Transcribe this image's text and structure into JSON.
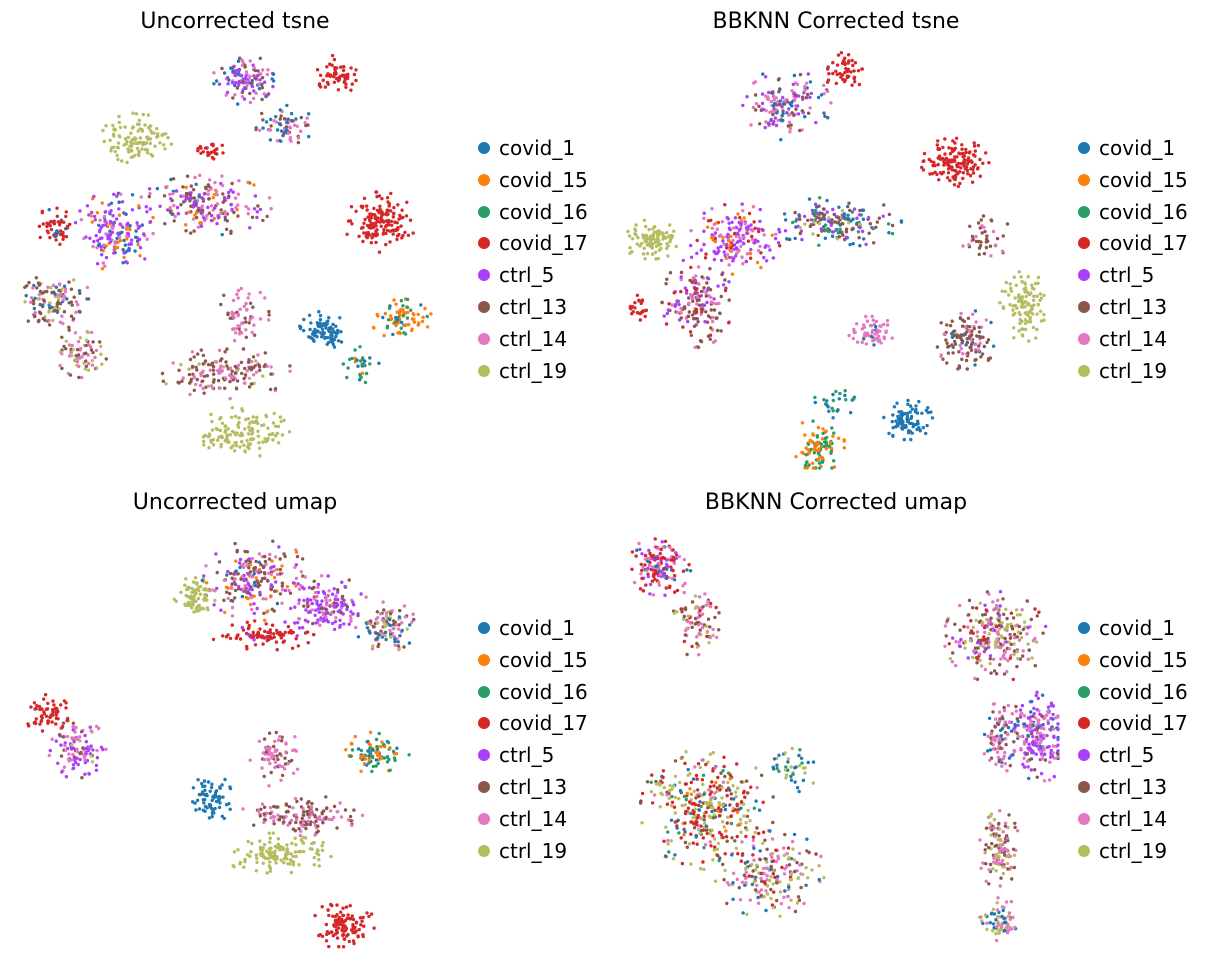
{
  "colors": {
    "covid_1": "#1f77b4",
    "covid_15": "#ff7f0e",
    "covid_16": "#279e68",
    "covid_17": "#d62728",
    "ctrl_5": "#aa40fc",
    "ctrl_13": "#8c564b",
    "ctrl_14": "#e377c2",
    "ctrl_19": "#b5bd61"
  },
  "chart_data": [
    {
      "type": "scatter",
      "title": "Uncorrected tsne",
      "legend": [
        "covid_1",
        "covid_15",
        "covid_16",
        "covid_17",
        "ctrl_5",
        "ctrl_13",
        "ctrl_14",
        "ctrl_19"
      ],
      "legend_position": "right",
      "grid": false,
      "axes_visible": false,
      "clusters": [
        {
          "cx": 0.52,
          "cy": 0.07,
          "rx": 0.06,
          "ry": 0.05,
          "n": 120,
          "mix": {
            "ctrl_5": 0.35,
            "ctrl_13": 0.25,
            "covid_1": 0.15,
            "ctrl_14": 0.25
          }
        },
        {
          "cx": 0.62,
          "cy": 0.18,
          "rx": 0.06,
          "ry": 0.04,
          "n": 70,
          "mix": {
            "ctrl_13": 0.4,
            "ctrl_14": 0.3,
            "covid_1": 0.3
          }
        },
        {
          "cx": 0.74,
          "cy": 0.06,
          "rx": 0.04,
          "ry": 0.04,
          "n": 60,
          "mix": {
            "covid_17": 1
          }
        },
        {
          "cx": 0.27,
          "cy": 0.21,
          "rx": 0.07,
          "ry": 0.05,
          "n": 110,
          "mix": {
            "ctrl_19": 1
          }
        },
        {
          "cx": 0.44,
          "cy": 0.24,
          "rx": 0.03,
          "ry": 0.02,
          "n": 25,
          "mix": {
            "covid_17": 1
          }
        },
        {
          "cx": 0.43,
          "cy": 0.37,
          "rx": 0.13,
          "ry": 0.06,
          "n": 200,
          "mix": {
            "ctrl_13": 0.35,
            "ctrl_5": 0.25,
            "ctrl_14": 0.25,
            "covid_15": 0.1,
            "covid_1": 0.05
          }
        },
        {
          "cx": 0.22,
          "cy": 0.43,
          "rx": 0.08,
          "ry": 0.08,
          "n": 170,
          "mix": {
            "ctrl_5": 0.5,
            "ctrl_14": 0.2,
            "covid_1": 0.15,
            "covid_15": 0.15
          }
        },
        {
          "cx": 0.08,
          "cy": 0.42,
          "rx": 0.04,
          "ry": 0.04,
          "n": 50,
          "mix": {
            "covid_17": 0.8,
            "covid_1": 0.2
          }
        },
        {
          "cx": 0.08,
          "cy": 0.6,
          "rx": 0.07,
          "ry": 0.06,
          "n": 120,
          "mix": {
            "ctrl_13": 0.45,
            "ctrl_14": 0.25,
            "ctrl_19": 0.15,
            "covid_1": 0.15
          }
        },
        {
          "cx": 0.14,
          "cy": 0.72,
          "rx": 0.05,
          "ry": 0.05,
          "n": 70,
          "mix": {
            "ctrl_14": 0.4,
            "ctrl_19": 0.3,
            "ctrl_13": 0.3
          }
        },
        {
          "cx": 0.84,
          "cy": 0.41,
          "rx": 0.07,
          "ry": 0.06,
          "n": 150,
          "mix": {
            "covid_17": 1
          }
        },
        {
          "cx": 0.71,
          "cy": 0.67,
          "rx": 0.05,
          "ry": 0.04,
          "n": 90,
          "mix": {
            "covid_1": 1
          }
        },
        {
          "cx": 0.89,
          "cy": 0.64,
          "rx": 0.06,
          "ry": 0.04,
          "n": 80,
          "mix": {
            "covid_15": 0.6,
            "covid_16": 0.3,
            "covid_1": 0.1
          }
        },
        {
          "cx": 0.79,
          "cy": 0.75,
          "rx": 0.04,
          "ry": 0.04,
          "n": 30,
          "mix": {
            "covid_16": 0.6,
            "covid_1": 0.2,
            "covid_15": 0.2
          }
        },
        {
          "cx": 0.52,
          "cy": 0.63,
          "rx": 0.05,
          "ry": 0.06,
          "n": 60,
          "mix": {
            "ctrl_14": 0.7,
            "ctrl_13": 0.3
          }
        },
        {
          "cx": 0.48,
          "cy": 0.77,
          "rx": 0.13,
          "ry": 0.05,
          "n": 160,
          "mix": {
            "ctrl_13": 0.5,
            "ctrl_14": 0.4,
            "ctrl_19": 0.1
          }
        },
        {
          "cx": 0.52,
          "cy": 0.91,
          "rx": 0.09,
          "ry": 0.05,
          "n": 130,
          "mix": {
            "ctrl_19": 1
          }
        }
      ]
    },
    {
      "type": "scatter",
      "title": "BBKNN Corrected tsne",
      "legend": [
        "covid_1",
        "covid_15",
        "covid_16",
        "covid_17",
        "ctrl_5",
        "ctrl_13",
        "ctrl_14",
        "ctrl_19"
      ],
      "legend_position": "right",
      "grid": false,
      "axes_visible": false,
      "clusters": [
        {
          "cx": 0.38,
          "cy": 0.13,
          "rx": 0.09,
          "ry": 0.07,
          "n": 150,
          "mix": {
            "ctrl_5": 0.25,
            "ctrl_14": 0.3,
            "covid_1": 0.2,
            "ctrl_13": 0.25
          }
        },
        {
          "cx": 0.52,
          "cy": 0.05,
          "rx": 0.04,
          "ry": 0.04,
          "n": 50,
          "mix": {
            "covid_17": 1
          }
        },
        {
          "cx": 0.78,
          "cy": 0.27,
          "rx": 0.07,
          "ry": 0.05,
          "n": 140,
          "mix": {
            "covid_17": 1
          }
        },
        {
          "cx": 0.06,
          "cy": 0.45,
          "rx": 0.06,
          "ry": 0.04,
          "n": 100,
          "mix": {
            "ctrl_19": 1
          }
        },
        {
          "cx": 0.26,
          "cy": 0.45,
          "rx": 0.09,
          "ry": 0.07,
          "n": 180,
          "mix": {
            "ctrl_5": 0.5,
            "ctrl_14": 0.2,
            "covid_17": 0.15,
            "covid_15": 0.15
          }
        },
        {
          "cx": 0.5,
          "cy": 0.41,
          "rx": 0.13,
          "ry": 0.05,
          "n": 180,
          "mix": {
            "ctrl_13": 0.3,
            "ctrl_5": 0.25,
            "covid_1": 0.2,
            "ctrl_19": 0.1,
            "covid_16": 0.15
          }
        },
        {
          "cx": 0.17,
          "cy": 0.6,
          "rx": 0.07,
          "ry": 0.09,
          "n": 170,
          "mix": {
            "ctrl_13": 0.5,
            "ctrl_14": 0.2,
            "ctrl_5": 0.15,
            "covid_17": 0.15
          }
        },
        {
          "cx": 0.03,
          "cy": 0.62,
          "rx": 0.03,
          "ry": 0.03,
          "n": 25,
          "mix": {
            "covid_17": 1
          }
        },
        {
          "cx": 0.86,
          "cy": 0.45,
          "rx": 0.05,
          "ry": 0.05,
          "n": 40,
          "mix": {
            "ctrl_13": 0.6,
            "ctrl_14": 0.4
          }
        },
        {
          "cx": 0.95,
          "cy": 0.61,
          "rx": 0.05,
          "ry": 0.07,
          "n": 110,
          "mix": {
            "ctrl_19": 1
          }
        },
        {
          "cx": 0.81,
          "cy": 0.69,
          "rx": 0.06,
          "ry": 0.06,
          "n": 120,
          "mix": {
            "ctrl_13": 0.6,
            "ctrl_14": 0.3,
            "covid_1": 0.1
          }
        },
        {
          "cx": 0.58,
          "cy": 0.67,
          "rx": 0.05,
          "ry": 0.03,
          "n": 60,
          "mix": {
            "ctrl_14": 0.9,
            "covid_1": 0.1
          }
        },
        {
          "cx": 0.5,
          "cy": 0.84,
          "rx": 0.05,
          "ry": 0.03,
          "n": 25,
          "mix": {
            "covid_1": 0.6,
            "covid_16": 0.4
          }
        },
        {
          "cx": 0.46,
          "cy": 0.94,
          "rx": 0.05,
          "ry": 0.06,
          "n": 100,
          "mix": {
            "covid_15": 0.6,
            "covid_16": 0.4
          }
        },
        {
          "cx": 0.67,
          "cy": 0.88,
          "rx": 0.05,
          "ry": 0.04,
          "n": 90,
          "mix": {
            "covid_1": 1
          }
        }
      ]
    },
    {
      "type": "scatter",
      "title": "Uncorrected umap",
      "legend": [
        "covid_1",
        "covid_15",
        "covid_16",
        "covid_17",
        "ctrl_5",
        "ctrl_13",
        "ctrl_14",
        "ctrl_19"
      ],
      "legend_position": "right",
      "grid": false,
      "axes_visible": false,
      "clusters": [
        {
          "cx": 0.56,
          "cy": 0.11,
          "rx": 0.11,
          "ry": 0.08,
          "n": 220,
          "mix": {
            "ctrl_13": 0.35,
            "ctrl_14": 0.3,
            "ctrl_5": 0.2,
            "covid_15": 0.1,
            "covid_1": 0.05
          }
        },
        {
          "cx": 0.72,
          "cy": 0.17,
          "rx": 0.08,
          "ry": 0.06,
          "n": 150,
          "mix": {
            "ctrl_5": 0.55,
            "ctrl_14": 0.25,
            "ctrl_13": 0.2
          }
        },
        {
          "cx": 0.86,
          "cy": 0.22,
          "rx": 0.06,
          "ry": 0.05,
          "n": 110,
          "mix": {
            "ctrl_13": 0.3,
            "ctrl_14": 0.3,
            "covid_1": 0.2,
            "ctrl_19": 0.2
          }
        },
        {
          "cx": 0.41,
          "cy": 0.15,
          "rx": 0.04,
          "ry": 0.04,
          "n": 70,
          "mix": {
            "ctrl_19": 1
          }
        },
        {
          "cx": 0.58,
          "cy": 0.24,
          "rx": 0.11,
          "ry": 0.03,
          "n": 90,
          "mix": {
            "covid_17": 0.9,
            "ctrl_5": 0.1
          }
        },
        {
          "cx": 0.07,
          "cy": 0.43,
          "rx": 0.05,
          "ry": 0.04,
          "n": 60,
          "mix": {
            "covid_17": 1
          }
        },
        {
          "cx": 0.13,
          "cy": 0.51,
          "rx": 0.06,
          "ry": 0.06,
          "n": 110,
          "mix": {
            "ctrl_5": 0.4,
            "ctrl_14": 0.3,
            "ctrl_13": 0.15,
            "ctrl_19": 0.15
          }
        },
        {
          "cx": 0.6,
          "cy": 0.53,
          "rx": 0.05,
          "ry": 0.06,
          "n": 70,
          "mix": {
            "ctrl_14": 0.7,
            "ctrl_13": 0.3
          }
        },
        {
          "cx": 0.83,
          "cy": 0.52,
          "rx": 0.07,
          "ry": 0.04,
          "n": 90,
          "mix": {
            "covid_15": 0.45,
            "covid_16": 0.45,
            "covid_1": 0.1
          }
        },
        {
          "cx": 0.45,
          "cy": 0.63,
          "rx": 0.04,
          "ry": 0.05,
          "n": 70,
          "mix": {
            "covid_1": 1
          }
        },
        {
          "cx": 0.66,
          "cy": 0.67,
          "rx": 0.12,
          "ry": 0.04,
          "n": 140,
          "mix": {
            "ctrl_13": 0.6,
            "ctrl_14": 0.4
          }
        },
        {
          "cx": 0.6,
          "cy": 0.76,
          "rx": 0.11,
          "ry": 0.04,
          "n": 130,
          "mix": {
            "ctrl_19": 1
          }
        },
        {
          "cx": 0.76,
          "cy": 0.93,
          "rx": 0.06,
          "ry": 0.05,
          "n": 110,
          "mix": {
            "covid_17": 1
          }
        }
      ]
    },
    {
      "type": "scatter",
      "title": "BBKNN Corrected umap",
      "legend": [
        "covid_1",
        "covid_15",
        "covid_16",
        "covid_17",
        "ctrl_5",
        "ctrl_13",
        "ctrl_14",
        "ctrl_19"
      ],
      "legend_position": "right",
      "grid": false,
      "axes_visible": false,
      "clusters": [
        {
          "cx": 0.07,
          "cy": 0.07,
          "rx": 0.06,
          "ry": 0.06,
          "n": 150,
          "mix": {
            "covid_17": 0.4,
            "ctrl_14": 0.25,
            "ctrl_5": 0.2,
            "covid_1": 0.15
          }
        },
        {
          "cx": 0.16,
          "cy": 0.2,
          "rx": 0.05,
          "ry": 0.08,
          "n": 80,
          "mix": {
            "ctrl_14": 0.3,
            "ctrl_13": 0.25,
            "covid_17": 0.2,
            "ctrl_19": 0.25
          }
        },
        {
          "cx": 0.18,
          "cy": 0.65,
          "rx": 0.13,
          "ry": 0.12,
          "n": 350,
          "mix": {
            "covid_17": 0.3,
            "ctrl_19": 0.3,
            "ctrl_13": 0.15,
            "covid_1": 0.1,
            "covid_16": 0.05,
            "covid_15": 0.05,
            "ctrl_14": 0.05
          }
        },
        {
          "cx": 0.32,
          "cy": 0.8,
          "rx": 0.11,
          "ry": 0.09,
          "n": 200,
          "mix": {
            "ctrl_14": 0.3,
            "ctrl_19": 0.3,
            "ctrl_13": 0.2,
            "covid_17": 0.1,
            "covid_1": 0.1
          }
        },
        {
          "cx": 0.38,
          "cy": 0.55,
          "rx": 0.05,
          "ry": 0.05,
          "n": 40,
          "mix": {
            "covid_1": 0.4,
            "covid_16": 0.3,
            "ctrl_19": 0.3
          }
        },
        {
          "cx": 0.85,
          "cy": 0.24,
          "rx": 0.1,
          "ry": 0.09,
          "n": 250,
          "mix": {
            "ctrl_13": 0.3,
            "ctrl_14": 0.25,
            "ctrl_19": 0.25,
            "ctrl_5": 0.1,
            "covid_17": 0.1
          }
        },
        {
          "cx": 0.95,
          "cy": 0.48,
          "rx": 0.06,
          "ry": 0.09,
          "n": 200,
          "mix": {
            "ctrl_5": 0.5,
            "ctrl_14": 0.3,
            "covid_1": 0.1,
            "ctrl_13": 0.1
          }
        },
        {
          "cx": 0.86,
          "cy": 0.48,
          "rx": 0.04,
          "ry": 0.07,
          "n": 90,
          "mix": {
            "ctrl_14": 0.5,
            "ctrl_13": 0.3,
            "covid_1": 0.2
          }
        },
        {
          "cx": 0.86,
          "cy": 0.75,
          "rx": 0.04,
          "ry": 0.08,
          "n": 120,
          "mix": {
            "ctrl_13": 0.4,
            "ctrl_19": 0.3,
            "ctrl_14": 0.3
          }
        },
        {
          "cx": 0.86,
          "cy": 0.92,
          "rx": 0.04,
          "ry": 0.05,
          "n": 70,
          "mix": {
            "ctrl_14": 0.4,
            "ctrl_19": 0.3,
            "covid_1": 0.3
          }
        }
      ]
    }
  ]
}
